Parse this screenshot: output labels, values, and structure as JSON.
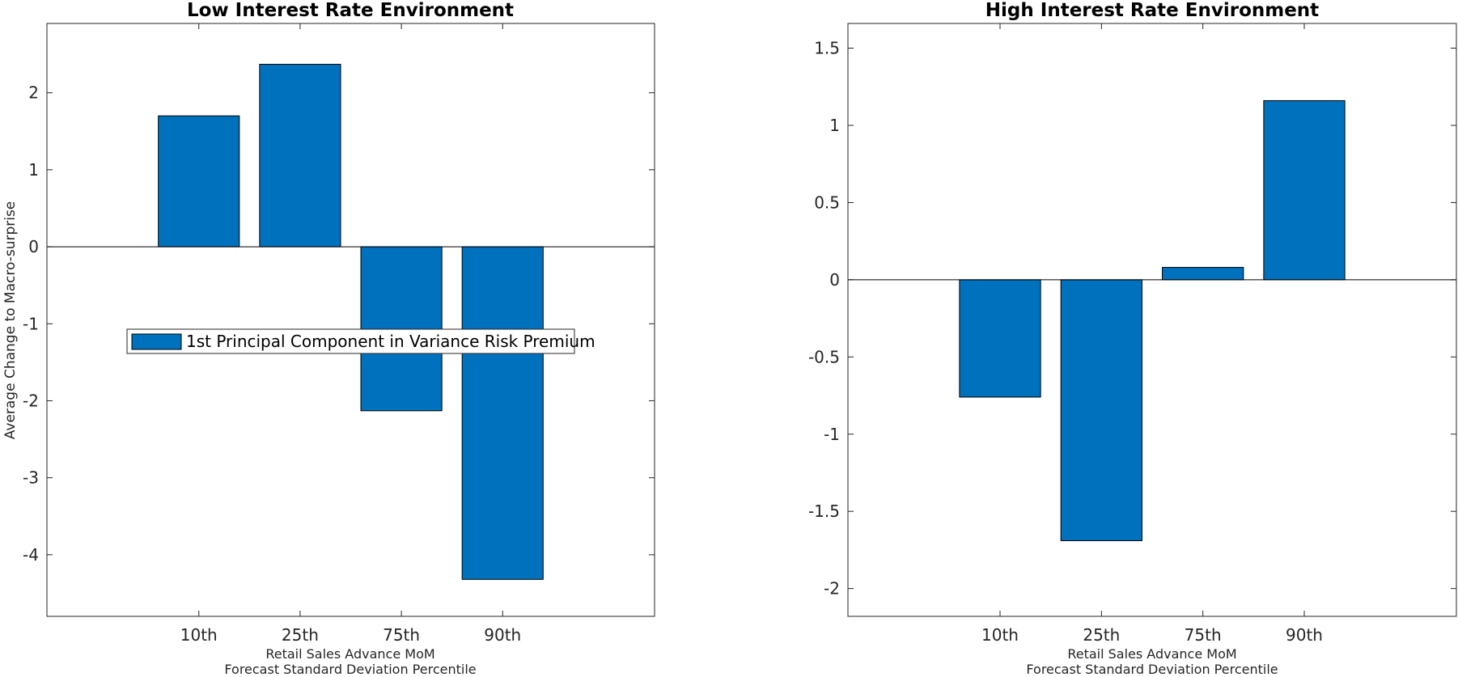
{
  "chart_data": [
    {
      "type": "bar",
      "title": "Low Interest Rate Environment",
      "categories": [
        "10th",
        "25th",
        "75th",
        "90th"
      ],
      "series": [
        {
          "name": "1st Principal Component in Variance Risk Premium",
          "values": [
            1.7,
            2.37,
            -2.13,
            -4.32
          ]
        }
      ],
      "xlabel": [
        "Retail Sales Advance MoM",
        "Forecast Standard Deviation Percentile"
      ],
      "ylabel": "Average Change to Macro-surprise",
      "ylim": [
        -4.8,
        2.9
      ],
      "yticks": [
        2,
        1,
        0,
        -1,
        -2,
        -3,
        -4
      ],
      "ytick_labels": [
        "2",
        "1",
        "0",
        "-1",
        "-2",
        "-3",
        "-4"
      ],
      "legend": "center",
      "grid": false,
      "bar_color": "#0072BD"
    },
    {
      "type": "bar",
      "title": "High Interest Rate Environment",
      "categories": [
        "10th",
        "25th",
        "75th",
        "90th"
      ],
      "series": [
        {
          "values": [
            -0.76,
            -1.69,
            0.08,
            1.16
          ]
        }
      ],
      "xlabel": [
        "Retail Sales Advance MoM",
        "Forecast Standard Deviation Percentile"
      ],
      "ylabel": "",
      "ylim": [
        -2.18,
        1.66
      ],
      "yticks": [
        1.5,
        1,
        0.5,
        0,
        -0.5,
        -1,
        -1.5,
        -2
      ],
      "ytick_labels": [
        "1.5",
        "1",
        "0.5",
        "0",
        "-0.5",
        "-1",
        "-1.5",
        "-2"
      ],
      "grid": false,
      "bar_color": "#0072BD"
    }
  ]
}
